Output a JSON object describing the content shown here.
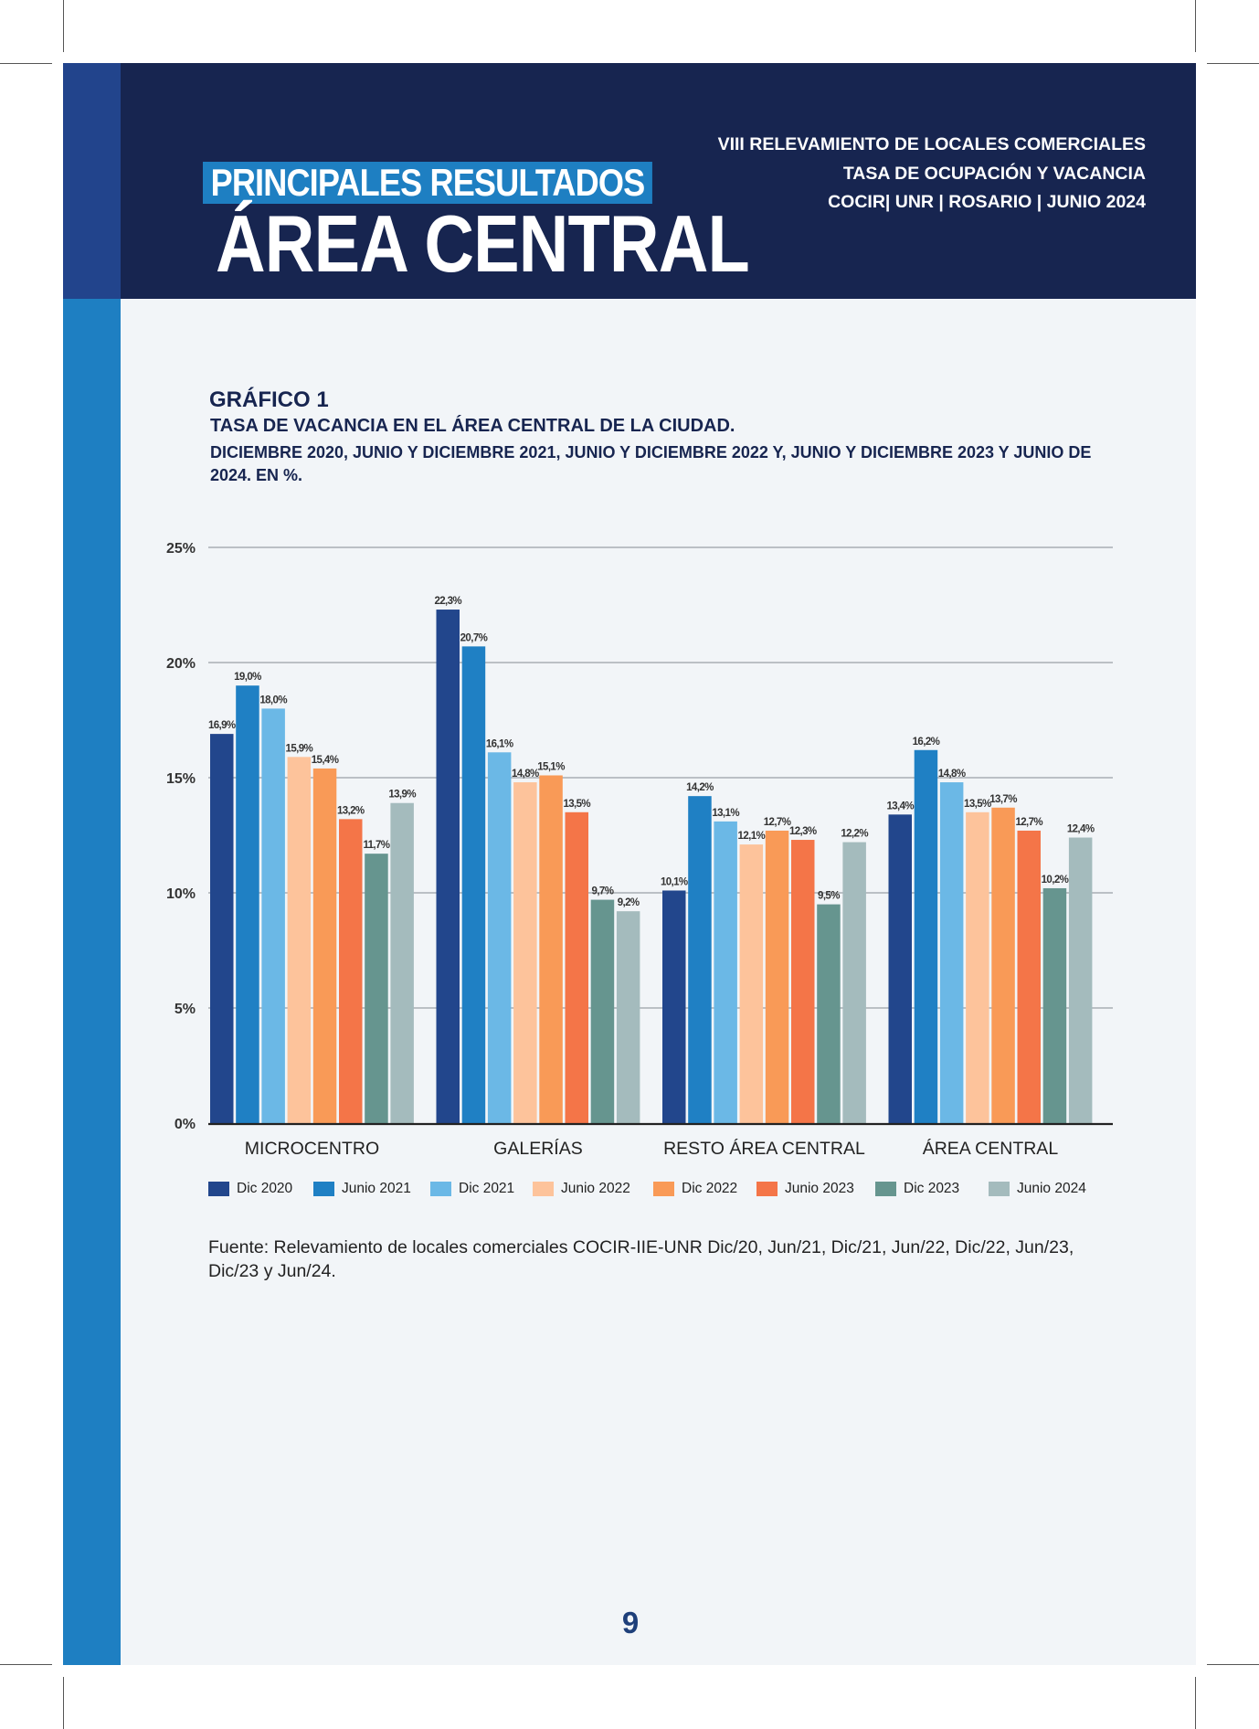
{
  "header": {
    "kicker": "PRINCIPALES RESULTADOS",
    "title": "ÁREA CENTRAL",
    "right_line1": "VIII RELEVAMIENTO DE LOCALES COMERCIALES",
    "right_line2": "TASA DE OCUPACIÓN Y VACANCIA",
    "right_line3": "COCIR| UNR | ROSARIO | JUNIO 2024"
  },
  "graph": {
    "label": "GRÁFICO 1",
    "title": "TASA DE VACANCIA EN EL ÁREA CENTRAL DE LA CIUDAD.",
    "subtitle": "DICIEMBRE 2020, JUNIO Y DICIEMBRE 2021, JUNIO Y DICIEMBRE 2022 Y, JUNIO Y DICIEMBRE 2023 Y JUNIO DE 2024. EN %."
  },
  "chart_data": {
    "type": "bar",
    "title": "TASA DE VACANCIA EN EL ÁREA CENTRAL DE LA CIUDAD.",
    "categories": [
      "MICROCENTRO",
      "GALERÍAS",
      "RESTO ÁREA CENTRAL",
      "ÁREA CENTRAL"
    ],
    "series": [
      {
        "name": "Dic 2020",
        "color": "#22468c",
        "values": [
          16.9,
          22.3,
          10.1,
          13.4
        ],
        "labels": [
          "16,9%",
          "22,3%",
          "10,1%",
          "13,4%"
        ]
      },
      {
        "name": "Junio 2021",
        "color": "#1f80c4",
        "values": [
          19.0,
          20.7,
          14.2,
          16.2
        ],
        "labels": [
          "19,0%",
          "20,7%",
          "14,2%",
          "16,2%"
        ]
      },
      {
        "name": "Dic 2021",
        "color": "#6bb8e6",
        "values": [
          18.0,
          16.1,
          13.1,
          14.8
        ],
        "labels": [
          "18,0%",
          "16,1%",
          "13,1%",
          "14,8%"
        ]
      },
      {
        "name": "Junio 2022",
        "color": "#fdc39b",
        "values": [
          15.9,
          14.8,
          12.1,
          13.5
        ],
        "labels": [
          "15,9%",
          "14,8%",
          "12,1%",
          "13,5%"
        ]
      },
      {
        "name": "Dic 2022",
        "color": "#f99a57",
        "values": [
          15.4,
          15.1,
          12.7,
          13.7
        ],
        "labels": [
          "15,4%",
          "15,1%",
          "12,7%",
          "13,7%"
        ]
      },
      {
        "name": "Junio 2023",
        "color": "#f47548",
        "values": [
          13.2,
          13.5,
          12.3,
          12.7
        ],
        "labels": [
          "13,2%",
          "13,5%",
          "12,3%",
          "12,7%"
        ]
      },
      {
        "name": "Dic 2023",
        "color": "#66958f",
        "values": [
          11.7,
          9.7,
          9.5,
          10.2
        ],
        "labels": [
          "11,7%",
          "9,7%",
          "9,5%",
          "10,2%"
        ]
      },
      {
        "name": "Junio 2024",
        "color": "#a4bbbd",
        "values": [
          13.9,
          9.2,
          12.2,
          12.4
        ],
        "labels": [
          "13,9%",
          "9,2%",
          "12,2%",
          "12,4%"
        ]
      }
    ],
    "yticks": [
      "0%",
      "5%",
      "10%",
      "15%",
      "20%",
      "25%"
    ],
    "ytick_values": [
      0,
      5,
      10,
      15,
      20,
      25
    ],
    "ylim": [
      0,
      25
    ],
    "grid": true,
    "legend_position": "bottom"
  },
  "source": "Fuente: Relevamiento de locales comerciales COCIR-IIE-UNR Dic/20, Jun/21, Dic/21, Jun/22, Dic/22, Jun/23, Dic/23 y Jun/24.",
  "page_number": "9"
}
